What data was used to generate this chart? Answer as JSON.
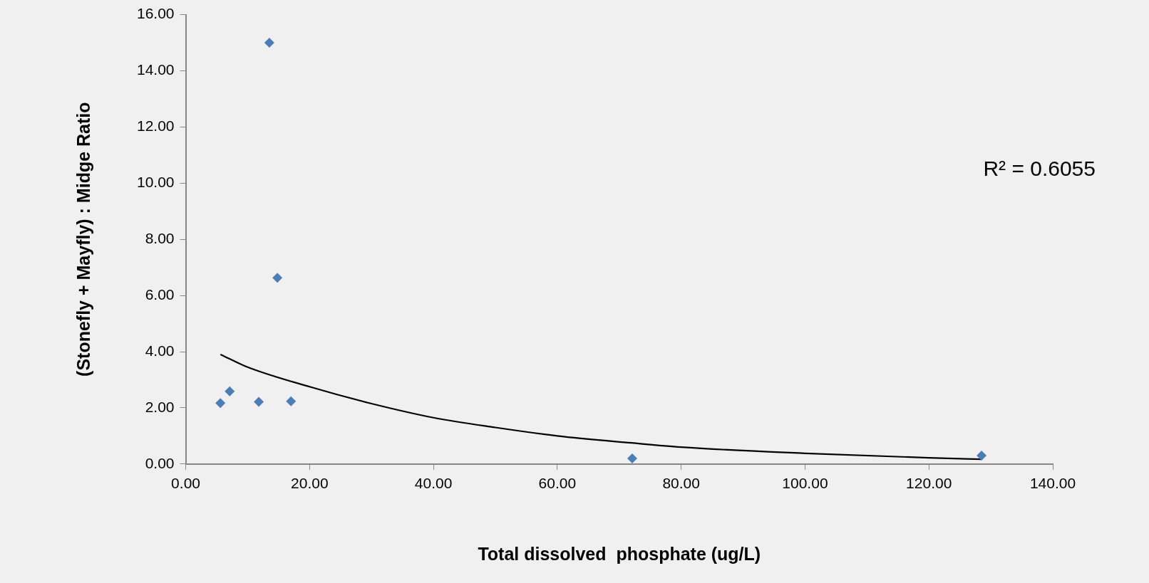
{
  "chart_data": {
    "type": "scatter",
    "xlabel": "Total dissolved  phosphate (ug/L)",
    "ylabel": "(Stonefly + Mayfly) : Midge Ratio",
    "annotations": [
      "R² = 0.6055"
    ],
    "marker": "diamond",
    "grid": false,
    "legend": false,
    "xlim": [
      0,
      140
    ],
    "ylim": [
      0,
      16
    ],
    "xticks": [
      {
        "value": 0,
        "label": "0.00"
      },
      {
        "value": 20,
        "label": "20.00"
      },
      {
        "value": 40,
        "label": "40.00"
      },
      {
        "value": 60,
        "label": "60.00"
      },
      {
        "value": 80,
        "label": "80.00"
      },
      {
        "value": 100,
        "label": "100.00"
      },
      {
        "value": 120,
        "label": "120.00"
      },
      {
        "value": 140,
        "label": "140.00"
      }
    ],
    "yticks": [
      {
        "value": 0,
        "label": "0.00"
      },
      {
        "value": 2,
        "label": "2.00"
      },
      {
        "value": 4,
        "label": "4.00"
      },
      {
        "value": 6,
        "label": "6.00"
      },
      {
        "value": 8,
        "label": "8.00"
      },
      {
        "value": 10,
        "label": "10.00"
      },
      {
        "value": 12,
        "label": "12.00"
      },
      {
        "value": 14,
        "label": "14.00"
      },
      {
        "value": 16,
        "label": "16.00"
      }
    ],
    "series": [
      {
        "color": "#4a7ebb",
        "x": [
          5.6,
          7.1,
          11.8,
          13.5,
          14.8,
          17.0,
          72.1,
          128.5
        ],
        "values": [
          2.17,
          2.59,
          2.21,
          15.0,
          6.63,
          2.23,
          0.2,
          0.3
        ]
      },
      {
        "type": "line",
        "color": "#000000",
        "marker": "none",
        "x": [
          5.6,
          10,
          20,
          30,
          40,
          50,
          60,
          72,
          80,
          100,
          120,
          128.5
        ],
        "values": [
          3.9,
          3.45,
          2.75,
          2.15,
          1.65,
          1.3,
          1.0,
          0.75,
          0.6,
          0.38,
          0.22,
          0.17
        ]
      }
    ]
  }
}
